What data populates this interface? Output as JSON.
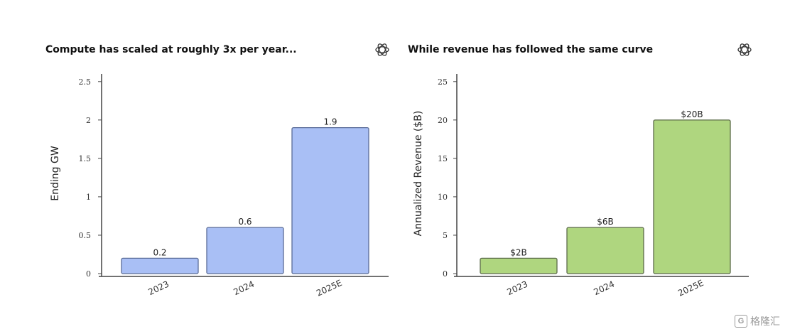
{
  "chart_data": [
    {
      "type": "bar",
      "title": "Compute has scaled at roughly 3x per year...",
      "xlabel": "",
      "ylabel": "Ending GW",
      "categories": [
        "2023",
        "2024",
        "2025E"
      ],
      "values": [
        0.2,
        0.6,
        1.9
      ],
      "value_labels": [
        "0.2",
        "0.6",
        "1.9"
      ],
      "ylim": [
        0,
        2.6
      ],
      "yticks": [
        0,
        0.5,
        1,
        1.5,
        2,
        2.5
      ],
      "ytick_labels": [
        "0",
        "0.5",
        "1",
        "1.5",
        "2",
        "2.5"
      ],
      "bar_color": "#a9bff5",
      "bar_edge": "#5a6c98",
      "grid": false,
      "legend": "none"
    },
    {
      "type": "bar",
      "title": "While revenue has followed the same curve",
      "xlabel": "",
      "ylabel": "Annualized Revenue ($B)",
      "categories": [
        "2023",
        "2024",
        "2025E"
      ],
      "values": [
        2,
        6,
        20
      ],
      "value_labels": [
        "$2B",
        "$6B",
        "$20B"
      ],
      "ylim": [
        0,
        26
      ],
      "yticks": [
        0,
        5,
        10,
        15,
        20,
        25
      ],
      "ytick_labels": [
        "0",
        "5",
        "10",
        "15",
        "20",
        "25"
      ],
      "bar_color": "#afd67f",
      "bar_edge": "#5c6b4a",
      "grid": false,
      "legend": "none"
    }
  ],
  "icons": {
    "brand": "openai-logo-icon"
  },
  "watermark": {
    "text": "格隆汇",
    "box": "G"
  }
}
